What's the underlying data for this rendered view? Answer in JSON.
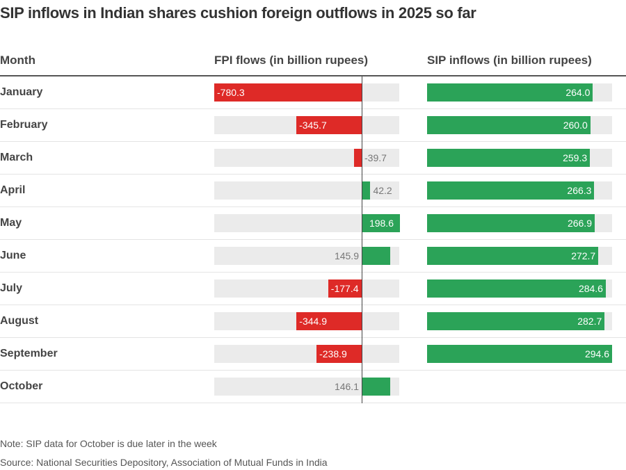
{
  "title": "SIP inflows in Indian shares cushion foreign outflows in 2025 so far",
  "chart_data": {
    "type": "table",
    "columns": [
      "Month",
      "FPI flows (in billion rupees)",
      "SIP inflows (in billion rupees)"
    ],
    "categories": [
      "January",
      "February",
      "March",
      "April",
      "May",
      "June",
      "July",
      "August",
      "September",
      "October"
    ],
    "series": [
      {
        "name": "FPI flows (in billion rupees)",
        "values": [
          -780.3,
          -345.7,
          -39.7,
          42.2,
          198.6,
          145.9,
          -177.4,
          -344.9,
          -238.9,
          146.1
        ],
        "range": [
          -780.3,
          198.6
        ]
      },
      {
        "name": "SIP inflows (in billion rupees)",
        "values": [
          264.0,
          260.0,
          259.3,
          266.3,
          266.9,
          272.7,
          284.6,
          282.7,
          294.6,
          null
        ],
        "range": [
          0,
          294.6
        ]
      }
    ],
    "colors": {
      "negative": "#de2a27",
      "positive": "#2ba358",
      "track": "#ebebeb"
    }
  },
  "notes": {
    "note": "Note: SIP data for October is due later in the week",
    "source": "Source: National Securities Depository, Association of Mutual Funds in India"
  }
}
